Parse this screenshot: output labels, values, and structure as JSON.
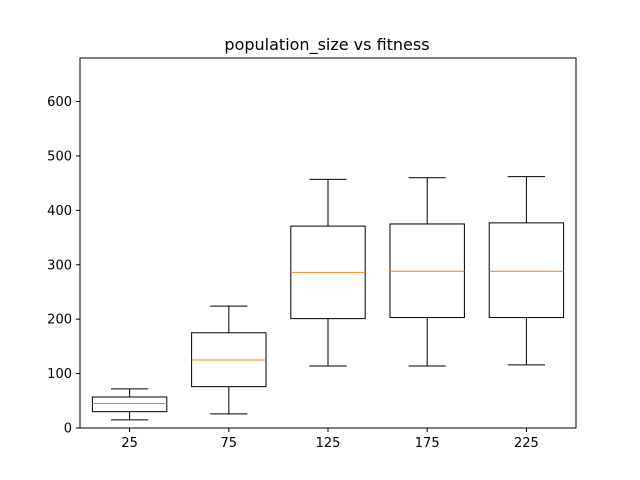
{
  "chart_data": {
    "type": "box",
    "title": "population_size vs fitness",
    "xlabel": "",
    "ylabel": "",
    "categories": [
      "25",
      "75",
      "125",
      "175",
      "225"
    ],
    "boxes": [
      {
        "category": "25",
        "whisker_low": 15,
        "q1": 30,
        "median": 45,
        "q3": 57,
        "whisker_high": 72
      },
      {
        "category": "75",
        "whisker_low": 26,
        "q1": 76,
        "median": 125,
        "q3": 175,
        "whisker_high": 224
      },
      {
        "category": "125",
        "whisker_low": 114,
        "q1": 201,
        "median": 286,
        "q3": 371,
        "whisker_high": 457
      },
      {
        "category": "175",
        "whisker_low": 114,
        "q1": 203,
        "median": 288,
        "q3": 375,
        "whisker_high": 460
      },
      {
        "category": "225",
        "whisker_low": 116,
        "q1": 203,
        "median": 288,
        "q3": 377,
        "whisker_high": 462
      }
    ],
    "ylim": [
      0,
      680
    ],
    "yticks": [
      0,
      100,
      200,
      300,
      400,
      500,
      600
    ],
    "grid": false,
    "colors": {
      "box": "#000000",
      "median": "#ff7f0e",
      "axes": "#000000",
      "background": "#ffffff"
    }
  }
}
